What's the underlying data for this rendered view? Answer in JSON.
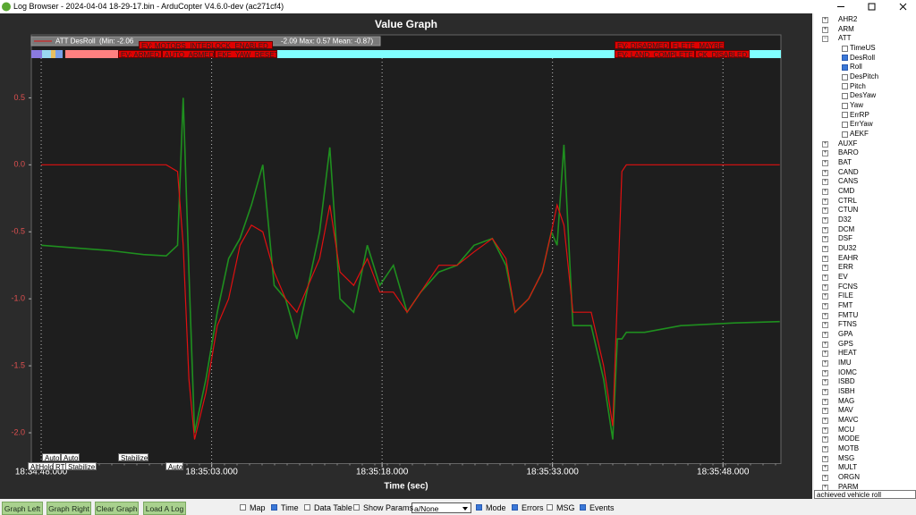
{
  "window": {
    "title": "Log Browser - 2024-04-04 18-29-17.bin - ArduCopter V4.6.0-dev (ac271cf4)"
  },
  "chart_data": {
    "type": "line",
    "title": "Value Graph",
    "x_label": "Time (sec)",
    "x": [
      "18:34:48.000",
      "18:34:51.000",
      "18:34:54.000",
      "18:34:57.000",
      "18:34:59.000",
      "18:35:00.000",
      "18:35:00.500",
      "18:35:01.000",
      "18:35:01.500",
      "18:35:02.500",
      "18:35:03.500",
      "18:35:04.500",
      "18:35:05.500",
      "18:35:06.500",
      "18:35:07.500",
      "18:35:08.500",
      "18:35:09.500",
      "18:35:10.500",
      "18:35:11.500",
      "18:35:12.500",
      "18:35:13.400",
      "18:35:14.300",
      "18:35:15.500",
      "18:35:16.700",
      "18:35:17.800",
      "18:35:19.000",
      "18:35:20.200",
      "18:35:21.400",
      "18:35:23.000",
      "18:35:24.600",
      "18:35:26.100",
      "18:35:27.700",
      "18:35:28.900",
      "18:35:29.700",
      "18:35:30.900",
      "18:35:32.100",
      "18:35:32.900",
      "18:35:33.400",
      "18:35:34.000",
      "18:35:34.800",
      "18:35:36.400",
      "18:35:37.500",
      "18:35:38.300",
      "18:35:38.700",
      "18:35:39.100",
      "18:35:39.500",
      "18:35:41.100",
      "18:35:44.300",
      "18:35:49.000",
      "18:35:53.000"
    ],
    "xlim": [
      "18:34:47.130",
      "18:35:53.100"
    ],
    "xticks": [
      "18:34:48.000",
      "18:35:03.000",
      "18:35:18.000",
      "18:35:33.000",
      "18:35:48.000"
    ],
    "ylim": [
      -2.23,
      0.97
    ],
    "yticks": [
      0.5,
      {
        "value": 0,
        "label": "0.0"
      },
      -0.5,
      {
        "value": -1,
        "label": "-1.0"
      },
      -1.5,
      {
        "value": -2,
        "label": "-2.0"
      }
    ],
    "series": [
      {
        "name": "ATT DesRoll",
        "stats": "(Min: -2.06",
        "color": "#e01010",
        "values": [
          0,
          0,
          0,
          0,
          0,
          -0.05,
          -0.6,
          -1.6,
          -2.05,
          -1.7,
          -1.2,
          -1.0,
          -0.6,
          -0.45,
          -0.5,
          -0.8,
          -1.0,
          -1.1,
          -0.9,
          -0.7,
          -0.3,
          -0.8,
          -0.9,
          -0.7,
          -0.95,
          -0.95,
          -1.1,
          -0.95,
          -0.75,
          -0.75,
          -0.65,
          -0.55,
          -0.7,
          -1.1,
          -1.0,
          -0.8,
          -0.5,
          -0.3,
          -0.45,
          -1.1,
          -1.1,
          -1.5,
          -1.95,
          -1.0,
          -0.05,
          0,
          0,
          0,
          0,
          0
        ]
      },
      {
        "stats": "-2.09 Max: 0.57 Mean: -0.87)",
        "color": "#1f8f1f",
        "values": [
          -0.6,
          -0.62,
          -0.64,
          -0.67,
          -0.68,
          -0.6,
          0.5,
          -0.8,
          -2.0,
          -1.6,
          -1.1,
          -0.7,
          -0.55,
          -0.3,
          0.0,
          -0.9,
          -1.0,
          -1.3,
          -0.9,
          -0.5,
          0.13,
          -1.0,
          -1.1,
          -0.6,
          -0.9,
          -0.75,
          -1.1,
          -0.95,
          -0.8,
          -0.75,
          -0.6,
          -0.55,
          -0.75,
          -1.1,
          -1.0,
          -0.8,
          -0.5,
          -0.6,
          0.15,
          -1.2,
          -1.2,
          -1.6,
          -2.05,
          -1.3,
          -1.3,
          -1.25,
          -1.25,
          -1.2,
          -1.18,
          -1.17
        ]
      }
    ],
    "events": [
      "EV: MOTORS_INTERLOCK_ENABLED",
      "EV: DISARMED",
      "FLETE_MAYBE",
      "EV: ARMED",
      "AUTO_ARMED",
      "EKF_YAW_RESET",
      "EV: LAND_COMPLETE",
      "CK_DISABLED"
    ],
    "modes": [
      "Auto",
      "Auto",
      "AltHold",
      "RTL",
      "Stabilize",
      "Stabilize",
      "Auto"
    ]
  },
  "tree": {
    "items": [
      {
        "label": "AHR2"
      },
      {
        "label": "ARM"
      },
      {
        "label": "ATT",
        "children": [
          {
            "label": "TimeUS",
            "checked": false
          },
          {
            "label": "DesRoll",
            "checked": true
          },
          {
            "label": "Roll",
            "checked": true
          },
          {
            "label": "DesPitch",
            "checked": false
          },
          {
            "label": "Pitch",
            "checked": false
          },
          {
            "label": "DesYaw",
            "checked": false
          },
          {
            "label": "Yaw",
            "checked": false
          },
          {
            "label": "ErrRP",
            "checked": false
          },
          {
            "label": "ErrYaw",
            "checked": false
          },
          {
            "label": "AEKF",
            "checked": false
          }
        ]
      },
      {
        "label": "AUXF"
      },
      {
        "label": "BARO"
      },
      {
        "label": "BAT"
      },
      {
        "label": "CAND"
      },
      {
        "label": "CANS"
      },
      {
        "label": "CMD"
      },
      {
        "label": "CTRL"
      },
      {
        "label": "CTUN"
      },
      {
        "label": "D32"
      },
      {
        "label": "DCM"
      },
      {
        "label": "DSF"
      },
      {
        "label": "DU32"
      },
      {
        "label": "EAHR"
      },
      {
        "label": "ERR"
      },
      {
        "label": "EV"
      },
      {
        "label": "FCNS"
      },
      {
        "label": "FILE"
      },
      {
        "label": "FMT"
      },
      {
        "label": "FMTU"
      },
      {
        "label": "FTNS"
      },
      {
        "label": "GPA"
      },
      {
        "label": "GPS"
      },
      {
        "label": "HEAT"
      },
      {
        "label": "IMU"
      },
      {
        "label": "IOMC"
      },
      {
        "label": "ISBD"
      },
      {
        "label": "ISBH"
      },
      {
        "label": "MAG"
      },
      {
        "label": "MAV"
      },
      {
        "label": "MAVC"
      },
      {
        "label": "MCU"
      },
      {
        "label": "MODE"
      },
      {
        "label": "MOTB"
      },
      {
        "label": "MSG"
      },
      {
        "label": "MULT"
      },
      {
        "label": "ORGN"
      },
      {
        "label": "PARM"
      }
    ],
    "tooltip": "achieved vehicle roll"
  },
  "toolbar": {
    "buttons": [
      "Graph Left",
      "Graph Right",
      "Clear Graph",
      "Load A Log"
    ],
    "options": [
      {
        "label": "Map",
        "checked": false
      },
      {
        "label": "Time",
        "checked": true
      },
      {
        "label": "Data Table",
        "checked": false
      },
      {
        "label": "Show Params",
        "checked": false
      },
      {
        "label": "Mode",
        "checked": true
      },
      {
        "label": "Errors",
        "checked": true
      },
      {
        "label": "MSG",
        "checked": false
      },
      {
        "label": "Events",
        "checked": true
      }
    ],
    "dropdown": "a/None"
  }
}
